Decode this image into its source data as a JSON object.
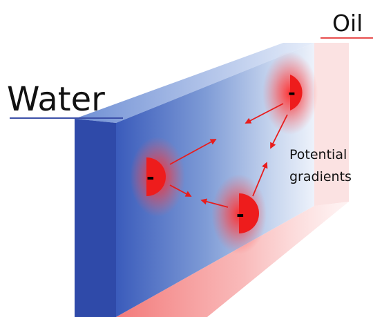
{
  "labels": {
    "water": "Water",
    "oil": "Oil",
    "gradient_line1": "Potential",
    "gradient_line2": "gradients"
  },
  "charges": [
    {
      "id": "charge-left",
      "sign": "-"
    },
    {
      "id": "charge-top",
      "sign": "-"
    },
    {
      "id": "charge-bottom",
      "sign": "-"
    }
  ],
  "colors": {
    "water_blue": "#3556b3",
    "water_blue_dark": "#2a46a6",
    "oil_pink": "#f6b0b0",
    "charge_red": "#ee1c1c",
    "arrow_red": "#e81c1c",
    "water_underline": "#3b4fa8",
    "oil_underline": "#e74c4c"
  }
}
